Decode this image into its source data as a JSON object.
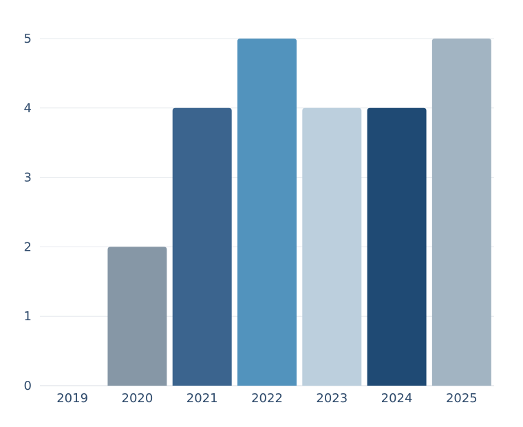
{
  "chart_data": {
    "type": "bar",
    "categories": [
      "2019",
      "2020",
      "2021",
      "2022",
      "2023",
      "2024",
      "2025"
    ],
    "values": [
      0,
      2,
      4,
      5,
      4,
      4,
      5
    ],
    "title": "",
    "xlabel": "",
    "ylabel": "",
    "ylim": [
      0,
      5
    ],
    "yticks": [
      0,
      1,
      2,
      3,
      4,
      5
    ],
    "grid": true,
    "legend": "none",
    "colors": [
      "#8697a6",
      "#8697a6",
      "#3b648e",
      "#5293bd",
      "#bccfdd",
      "#1f4a74",
      "#a2b4c2"
    ]
  }
}
